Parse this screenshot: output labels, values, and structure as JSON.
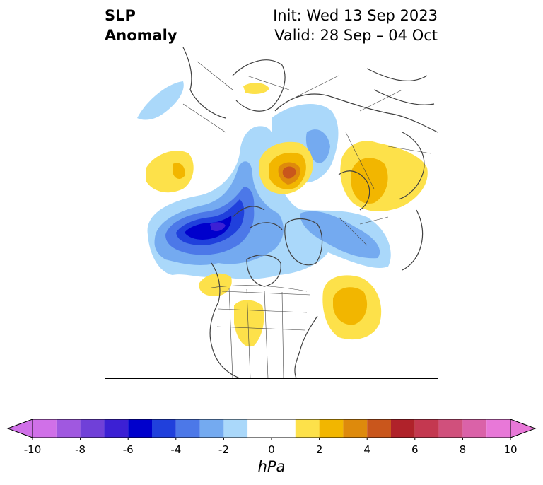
{
  "header": {
    "title_line1": "SLP",
    "title_line2": "Anomaly",
    "init_label": "Init: Wed 13 Sep 2023",
    "valid_label": "Valid: 28 Sep – 04 Oct"
  },
  "colorbar": {
    "units": "hPa",
    "min": -10,
    "max": 10,
    "step": 1,
    "tick_labels": [
      "-10",
      "-8",
      "-6",
      "-4",
      "-2",
      "0",
      "2",
      "4",
      "6",
      "8",
      "10"
    ],
    "bins": [
      {
        "from": -10,
        "to": -9,
        "color": "#d070e8"
      },
      {
        "from": -9,
        "to": -8,
        "color": "#a058e0"
      },
      {
        "from": -8,
        "to": -7,
        "color": "#7040d8"
      },
      {
        "from": -7,
        "to": -6,
        "color": "#3c20d4"
      },
      {
        "from": -6,
        "to": -5,
        "color": "#0000cc"
      },
      {
        "from": -5,
        "to": -4,
        "color": "#2040dc"
      },
      {
        "from": -4,
        "to": -3,
        "color": "#4c78e8"
      },
      {
        "from": -3,
        "to": -2,
        "color": "#74aaf0"
      },
      {
        "from": -2,
        "to": -1,
        "color": "#aad8fa"
      },
      {
        "from": -1,
        "to": 1,
        "color": "#ffffff"
      },
      {
        "from": 1,
        "to": 2,
        "color": "#fde14a"
      },
      {
        "from": 2,
        "to": 3,
        "color": "#f2b600"
      },
      {
        "from": 3,
        "to": 4,
        "color": "#de8a0c"
      },
      {
        "from": 4,
        "to": 5,
        "color": "#c9561c"
      },
      {
        "from": 5,
        "to": 6,
        "color": "#b0222a"
      },
      {
        "from": 6,
        "to": 7,
        "color": "#c43850"
      },
      {
        "from": 7,
        "to": 8,
        "color": "#d0507c"
      },
      {
        "from": 8,
        "to": 9,
        "color": "#da62a8"
      },
      {
        "from": 9,
        "to": 10,
        "color": "#e878d8"
      }
    ],
    "extend": "both"
  },
  "map": {
    "projection": "north-polar",
    "field": "SLP anomaly",
    "coastline_color": "#404040"
  }
}
